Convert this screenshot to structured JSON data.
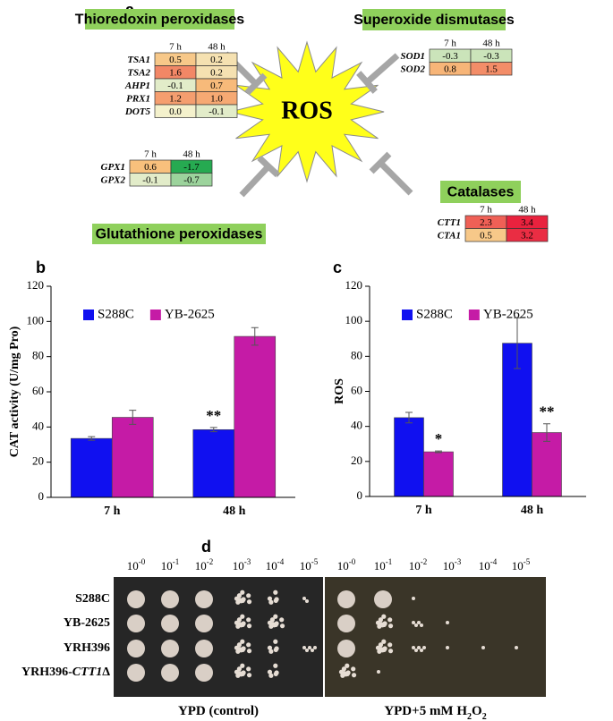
{
  "panel_a": {
    "label": "a",
    "center_label": "ROS",
    "groups": [
      {
        "title": "Thioredoxin peroxidases",
        "columns": [
          "7 h",
          "48 h"
        ],
        "rows": [
          {
            "gene": "TSA1",
            "values": [
              "0.5",
              "0.2"
            ]
          },
          {
            "gene": "TSA2",
            "values": [
              "1.6",
              "0.2"
            ]
          },
          {
            "gene": "AHP1",
            "values": [
              "-0.1",
              "0.7"
            ]
          },
          {
            "gene": "PRX1",
            "values": [
              "1.2",
              "1.0"
            ]
          },
          {
            "gene": "DOT5",
            "values": [
              "0.0",
              "-0.1"
            ]
          }
        ]
      },
      {
        "title": "Superoxide dismutases",
        "columns": [
          "7 h",
          "48 h"
        ],
        "rows": [
          {
            "gene": "SOD1",
            "values": [
              "-0.3",
              "-0.3"
            ]
          },
          {
            "gene": "SOD2",
            "values": [
              "0.8",
              "1.5"
            ]
          }
        ]
      },
      {
        "title": "Glutathione peroxidases",
        "columns": [
          "7 h",
          "48 h"
        ],
        "rows": [
          {
            "gene": "GPX1",
            "values": [
              "0.6",
              "-1.7"
            ]
          },
          {
            "gene": "GPX2",
            "values": [
              "-0.1",
              "-0.7"
            ]
          }
        ]
      },
      {
        "title": "Catalases",
        "columns": [
          "7 h",
          "48 h"
        ],
        "rows": [
          {
            "gene": "CTT1",
            "values": [
              "2.3",
              "3.4"
            ]
          },
          {
            "gene": "CTA1",
            "values": [
              "0.5",
              "3.2"
            ]
          }
        ]
      }
    ]
  },
  "chart_data": [
    {
      "type": "bar",
      "label": "b",
      "ylabel": "CAT activity (U/mg Pro)",
      "categories": [
        "7 h",
        "48 h"
      ],
      "series": [
        {
          "name": "S288C",
          "color": "#1010f0",
          "values": [
            33.5,
            38.5
          ],
          "errors": [
            1,
            1.2
          ],
          "significance": [
            null,
            "**"
          ]
        },
        {
          "name": "YB-2625",
          "color": "#c51ba6",
          "values": [
            45.5,
            91.5
          ],
          "errors": [
            4,
            5
          ],
          "significance": [
            null,
            null
          ]
        }
      ],
      "ylim": [
        0,
        120
      ],
      "yticks": [
        0,
        20,
        40,
        60,
        80,
        100,
        120
      ],
      "legend": "upper-left"
    },
    {
      "type": "bar",
      "label": "c",
      "ylabel": "ROS",
      "categories": [
        "7 h",
        "48 h"
      ],
      "series": [
        {
          "name": "S288C",
          "color": "#1010f0",
          "values": [
            45,
            87.5
          ],
          "errors": [
            3,
            14.5
          ],
          "significance": [
            null,
            null
          ]
        },
        {
          "name": "YB-2625",
          "color": "#c51ba6",
          "values": [
            25.5,
            36.5
          ],
          "errors": [
            0.5,
            5
          ],
          "significance": [
            "*",
            "**"
          ]
        }
      ],
      "ylim": [
        0,
        120
      ],
      "yticks": [
        0,
        20,
        40,
        60,
        80,
        100,
        120
      ],
      "legend": "upper-left"
    }
  ],
  "panel_d": {
    "label": "d",
    "strains": [
      [
        {
          "text": "S288C"
        }
      ],
      [
        {
          "text": "YB-2625"
        }
      ],
      [
        {
          "text": "YRH396"
        }
      ],
      [
        {
          "text": "YRH396-"
        },
        {
          "text": "CTT1",
          "style": "italic"
        },
        {
          "text": "Δ"
        }
      ]
    ],
    "plates": [
      {
        "caption": [
          {
            "text": "YPD (control)"
          }
        ],
        "dilutions": [
          {
            "base": "10",
            "exponent": "-0"
          },
          {
            "base": "10",
            "exponent": "-1"
          },
          {
            "base": "10",
            "exponent": "-2"
          },
          {
            "base": "10",
            "exponent": "-3"
          },
          {
            "base": "10",
            "exponent": "-4"
          },
          {
            "base": "10",
            "exponent": "-5"
          }
        ]
      },
      {
        "caption": [
          {
            "text": "YPD+5 mM H"
          },
          {
            "text": "2",
            "style": "sub"
          },
          {
            "text": "O"
          },
          {
            "text": "2",
            "style": "sub"
          }
        ],
        "dilutions": [
          {
            "base": "10",
            "exponent": "-0"
          },
          {
            "base": "10",
            "exponent": "-1"
          },
          {
            "base": "10",
            "exponent": "-2"
          },
          {
            "base": "10",
            "exponent": "-3"
          },
          {
            "base": "10",
            "exponent": "-4"
          },
          {
            "base": "10",
            "exponent": "-5"
          }
        ]
      }
    ]
  }
}
